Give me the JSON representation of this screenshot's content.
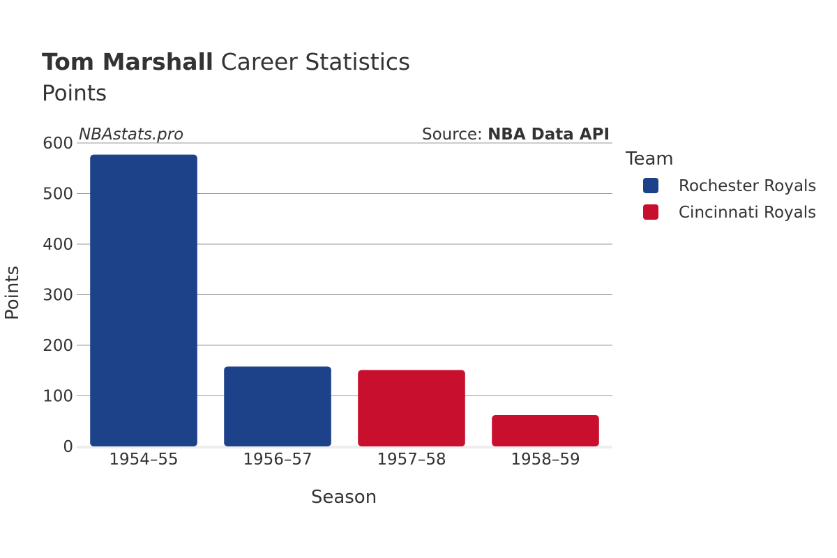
{
  "header": {
    "title_bold": "Tom Marshall",
    "title_rest": " Career Statistics",
    "subtitle": "Points",
    "watermark": "NBAstats.pro",
    "source_label": "Source: ",
    "source_value": "NBA Data API"
  },
  "legend": {
    "title": "Team"
  },
  "chart_data": {
    "type": "bar",
    "categories": [
      "1954–55",
      "1956–57",
      "1957–58",
      "1958–59"
    ],
    "values": [
      577,
      158,
      151,
      62
    ],
    "teams": [
      "Rochester Royals",
      "Rochester Royals",
      "Cincinnati Royals",
      "Cincinnati Royals"
    ],
    "series": [
      {
        "name": "Rochester Royals",
        "color": "#1D428A"
      },
      {
        "name": "Cincinnati Royals",
        "color": "#C8102E"
      }
    ],
    "xlabel": "Season",
    "ylabel": "Points",
    "ylim": [
      0,
      600
    ],
    "yticks": [
      0,
      100,
      200,
      300,
      400,
      500,
      600
    ],
    "grid": true,
    "legend_position": "right"
  }
}
